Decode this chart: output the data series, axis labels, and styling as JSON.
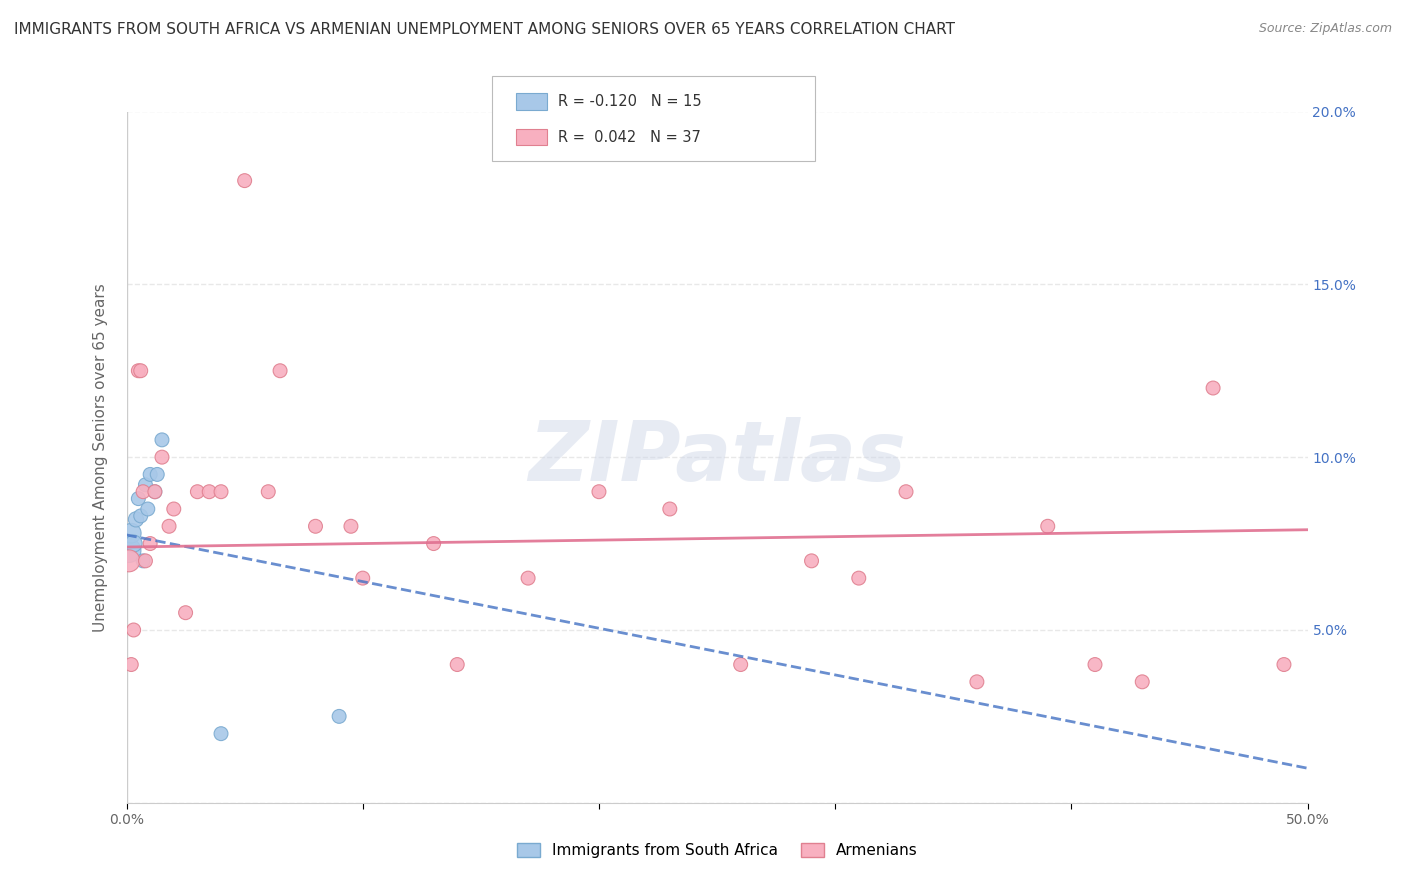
{
  "title": "IMMIGRANTS FROM SOUTH AFRICA VS ARMENIAN UNEMPLOYMENT AMONG SENIORS OVER 65 YEARS CORRELATION CHART",
  "source": "Source: ZipAtlas.com",
  "ylabel": "Unemployment Among Seniors over 65 years",
  "watermark": "ZIPatlas",
  "xlim": [
    0.0,
    0.5
  ],
  "ylim": [
    0.0,
    0.2
  ],
  "xticks": [
    0.0,
    0.1,
    0.2,
    0.3,
    0.4,
    0.5
  ],
  "xtick_labels": [
    "0.0%",
    "",
    "",
    "",
    "",
    "50.0%"
  ],
  "yticks": [
    0.0,
    0.05,
    0.1,
    0.15,
    0.2
  ],
  "ytick_labels_right": [
    "",
    "5.0%",
    "10.0%",
    "15.0%",
    "20.0%"
  ],
  "series": [
    {
      "label": "Immigrants from South Africa",
      "R": -0.12,
      "N": 15,
      "color": "#a8c8e8",
      "edge_color": "#7aaad0",
      "x": [
        0.001,
        0.002,
        0.003,
        0.004,
        0.005,
        0.006,
        0.007,
        0.008,
        0.009,
        0.01,
        0.012,
        0.013,
        0.015,
        0.04,
        0.09
      ],
      "y": [
        0.073,
        0.078,
        0.075,
        0.082,
        0.088,
        0.083,
        0.07,
        0.092,
        0.085,
        0.095,
        0.09,
        0.095,
        0.105,
        0.02,
        0.025
      ],
      "size": [
        300,
        200,
        150,
        120,
        100,
        100,
        100,
        100,
        100,
        100,
        100,
        100,
        100,
        100,
        100
      ]
    },
    {
      "label": "Armenians",
      "R": 0.042,
      "N": 37,
      "color": "#f8b0c0",
      "edge_color": "#e08090",
      "x": [
        0.001,
        0.002,
        0.003,
        0.005,
        0.006,
        0.007,
        0.008,
        0.01,
        0.012,
        0.015,
        0.018,
        0.02,
        0.025,
        0.03,
        0.035,
        0.04,
        0.05,
        0.06,
        0.065,
        0.08,
        0.095,
        0.1,
        0.13,
        0.14,
        0.17,
        0.2,
        0.23,
        0.26,
        0.29,
        0.31,
        0.33,
        0.36,
        0.39,
        0.41,
        0.43,
        0.46,
        0.49
      ],
      "y": [
        0.07,
        0.04,
        0.05,
        0.125,
        0.125,
        0.09,
        0.07,
        0.075,
        0.09,
        0.1,
        0.08,
        0.085,
        0.055,
        0.09,
        0.09,
        0.09,
        0.18,
        0.09,
        0.125,
        0.08,
        0.08,
        0.065,
        0.075,
        0.04,
        0.065,
        0.09,
        0.085,
        0.04,
        0.07,
        0.065,
        0.09,
        0.035,
        0.08,
        0.04,
        0.035,
        0.12,
        0.04
      ],
      "size": [
        250,
        100,
        100,
        100,
        100,
        100,
        100,
        100,
        100,
        100,
        100,
        100,
        100,
        100,
        100,
        100,
        100,
        100,
        100,
        100,
        100,
        100,
        100,
        100,
        100,
        100,
        100,
        100,
        100,
        100,
        100,
        100,
        100,
        100,
        100,
        100,
        100
      ]
    }
  ],
  "trend_blue": {
    "color": "#4472c4",
    "linestyle": "--",
    "x_start": 0.0,
    "x_end": 0.5,
    "y_start": 0.0775,
    "y_end": 0.01
  },
  "trend_pink": {
    "color": "#e07090",
    "linestyle": "-",
    "x_start": 0.0,
    "x_end": 0.5,
    "y_start": 0.074,
    "y_end": 0.079
  },
  "background_color": "#ffffff",
  "grid_color": "#e8e8e8"
}
